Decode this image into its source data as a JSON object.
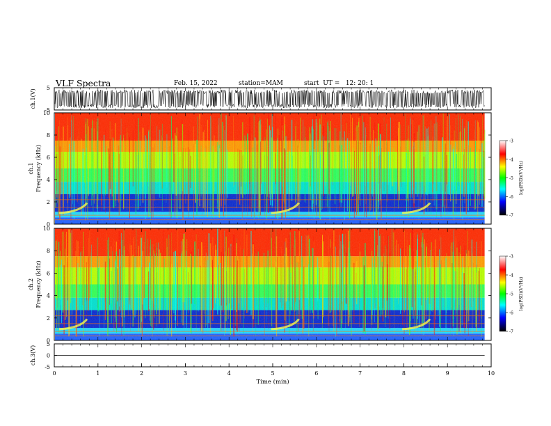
{
  "header": {
    "title": "VLF Spectra",
    "date": "Feb. 15, 2022",
    "station": "station=MAM",
    "start": "start  UT =   12: 20: 1"
  },
  "chart_data": [
    {
      "id": "ch1-waveform",
      "type": "line",
      "ylabel": "ch.1(V)",
      "ylim": [
        -5,
        5
      ],
      "yticks": [
        "5",
        "-5"
      ],
      "xlim": [
        0,
        10
      ],
      "description_series": "dense noise waveform, amplitude approx +/-4 V",
      "stroke": "#000000"
    },
    {
      "id": "ch1-spectrogram",
      "type": "heatmap",
      "ylabel_line1": "ch.1",
      "ylabel_line2": "Frequency  (kHz)",
      "ylim": [
        0,
        10
      ],
      "yticks": [
        "0",
        "2",
        "4",
        "6",
        "8",
        "10"
      ],
      "xlim": [
        0,
        10
      ],
      "colorbar": {
        "label": "log(PSD)(V²/Hz)",
        "range": [
          -7,
          -3
        ],
        "ticks": [
          "-3",
          "-4",
          "-5",
          "-6",
          "-7"
        ],
        "colormap": [
          "#ffffff",
          "#ff0000",
          "#ffff00",
          "#00ff00",
          "#00ffff",
          "#0000ff",
          "#000000"
        ]
      },
      "whistler_times_min": [
        0.75,
        5.6,
        8.6
      ]
    },
    {
      "id": "ch2-spectrogram",
      "type": "heatmap",
      "ylabel_line1": "ch.2",
      "ylabel_line2": "Frequency  (kHz)",
      "ylim": [
        0,
        10
      ],
      "yticks": [
        "0",
        "2",
        "4",
        "6",
        "8",
        "10"
      ],
      "xlim": [
        0,
        10
      ],
      "colorbar": {
        "label": "log(PSD)(V²/Hz)",
        "range": [
          -7,
          -3
        ],
        "ticks": [
          "-3",
          "-4",
          "-5",
          "-6",
          "-7"
        ],
        "colormap": [
          "#ffffff",
          "#ff0000",
          "#ffff00",
          "#00ff00",
          "#00ffff",
          "#0000ff",
          "#000000"
        ]
      },
      "whistler_times_min": [
        0.75,
        5.6,
        8.6
      ]
    },
    {
      "id": "ch3-waveform",
      "type": "line",
      "ylabel": "ch.3(V)",
      "ylim": [
        -5,
        5
      ],
      "yticks": [
        "5",
        "0",
        "-5"
      ],
      "xlim": [
        0,
        10
      ],
      "series": [
        {
          "x": [
            0,
            9.85
          ],
          "y": [
            0,
            0
          ]
        }
      ],
      "xlabel": "Time  (min)",
      "xticks": [
        "0",
        "1",
        "2",
        "3",
        "4",
        "5",
        "6",
        "7",
        "8",
        "9",
        "10"
      ]
    }
  ]
}
